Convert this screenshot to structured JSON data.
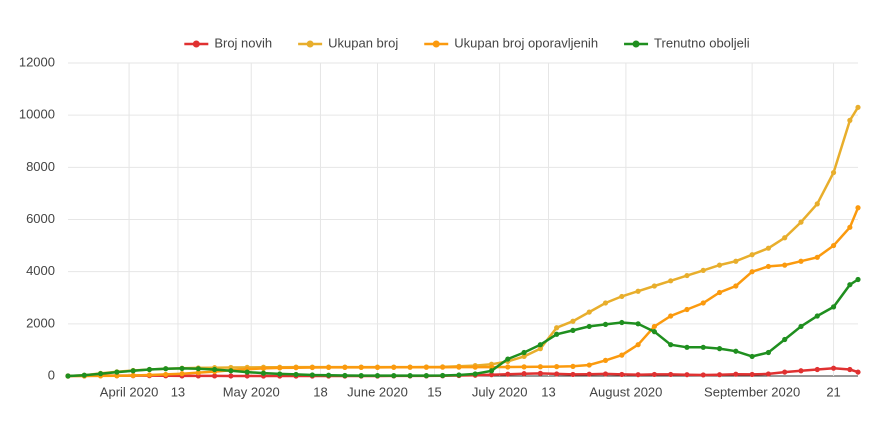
{
  "chart_data": {
    "type": "line",
    "x": [
      "2020-03-17",
      "2020-03-21",
      "2020-03-25",
      "2020-03-29",
      "2020-04-02",
      "2020-04-06",
      "2020-04-10",
      "2020-04-14",
      "2020-04-18",
      "2020-04-22",
      "2020-04-26",
      "2020-04-30",
      "2020-05-04",
      "2020-05-08",
      "2020-05-12",
      "2020-05-16",
      "2020-05-20",
      "2020-05-24",
      "2020-05-28",
      "2020-06-01",
      "2020-06-05",
      "2020-06-09",
      "2020-06-13",
      "2020-06-17",
      "2020-06-21",
      "2020-06-25",
      "2020-06-29",
      "2020-07-03",
      "2020-07-07",
      "2020-07-11",
      "2020-07-15",
      "2020-07-19",
      "2020-07-23",
      "2020-07-27",
      "2020-07-31",
      "2020-08-04",
      "2020-08-08",
      "2020-08-12",
      "2020-08-16",
      "2020-08-20",
      "2020-08-24",
      "2020-08-28",
      "2020-09-01",
      "2020-09-05",
      "2020-09-09",
      "2020-09-13",
      "2020-09-17",
      "2020-09-21",
      "2020-09-25",
      "2020-09-27"
    ],
    "series": [
      {
        "name": "Broj novih",
        "color": "#e03131",
        "values": [
          0,
          10,
          20,
          15,
          15,
          15,
          10,
          5,
          3,
          2,
          1,
          1,
          0,
          0,
          0,
          0,
          0,
          0,
          0,
          0,
          2,
          3,
          5,
          10,
          20,
          30,
          50,
          70,
          90,
          100,
          80,
          60,
          70,
          80,
          60,
          50,
          60,
          60,
          50,
          40,
          50,
          70,
          60,
          80,
          150,
          200,
          250,
          300,
          250,
          150
        ]
      },
      {
        "name": "Ukupan broj",
        "color": "#e8ae2c",
        "values": [
          0,
          30,
          100,
          160,
          210,
          250,
          280,
          300,
          310,
          320,
          325,
          330,
          335,
          338,
          340,
          340,
          340,
          340,
          340,
          340,
          340,
          342,
          345,
          350,
          370,
          400,
          450,
          560,
          750,
          1050,
          1850,
          2100,
          2450,
          2800,
          3050,
          3250,
          3450,
          3650,
          3850,
          4050,
          4250,
          4400,
          4650,
          4900,
          5300,
          5900,
          6600,
          7800,
          9800,
          10300
        ]
      },
      {
        "name": "Ukupan broj oporavljenih",
        "color": "#fb9a0e",
        "values": [
          0,
          0,
          5,
          10,
          20,
          40,
          60,
          90,
          130,
          170,
          220,
          260,
          290,
          310,
          320,
          325,
          330,
          330,
          330,
          330,
          332,
          335,
          335,
          338,
          340,
          340,
          340,
          345,
          350,
          355,
          360,
          370,
          420,
          600,
          800,
          1200,
          1900,
          2300,
          2550,
          2800,
          3200,
          3450,
          4000,
          4200,
          4250,
          4400,
          4550,
          5000,
          5700,
          6450
        ]
      },
      {
        "name": "Trenutno oboljeli",
        "color": "#1f8f1f",
        "values": [
          0,
          30,
          90,
          150,
          200,
          250,
          280,
          290,
          280,
          250,
          200,
          150,
          110,
          80,
          60,
          40,
          30,
          20,
          15,
          15,
          15,
          15,
          15,
          20,
          40,
          80,
          200,
          650,
          900,
          1200,
          1600,
          1750,
          1900,
          1980,
          2050,
          2000,
          1700,
          1200,
          1100,
          1100,
          1050,
          950,
          750,
          900,
          1400,
          1900,
          2300,
          2650,
          3500,
          3700
        ]
      }
    ],
    "xlim": [
      "2020-03-17",
      "2020-09-27"
    ],
    "xticks": [
      {
        "value": "2020-04-01",
        "label": "April 2020"
      },
      {
        "value": "2020-04-13",
        "label": "13"
      },
      {
        "value": "2020-05-01",
        "label": "May 2020"
      },
      {
        "value": "2020-05-18",
        "label": "18"
      },
      {
        "value": "2020-06-01",
        "label": "June 2020"
      },
      {
        "value": "2020-06-15",
        "label": "15"
      },
      {
        "value": "2020-07-01",
        "label": "July 2020"
      },
      {
        "value": "2020-07-13",
        "label": "13"
      },
      {
        "value": "2020-08-01",
        "label": "August 2020"
      },
      {
        "value": "2020-09-01",
        "label": "September 2020"
      },
      {
        "value": "2020-09-21",
        "label": "21"
      }
    ],
    "ylim": [
      0,
      12000
    ],
    "yticks": [
      0,
      2000,
      4000,
      6000,
      8000,
      10000,
      12000
    ],
    "grid": true,
    "legend": "top"
  }
}
